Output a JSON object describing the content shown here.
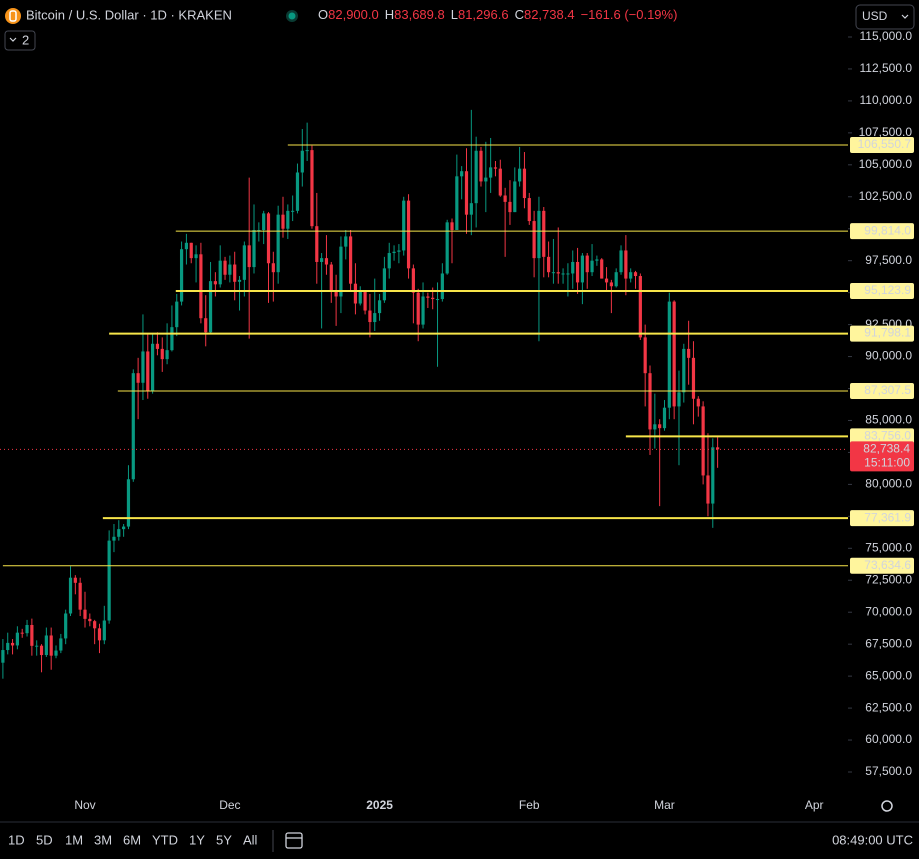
{
  "header": {
    "symbol": "Bitcoin / U.S. Dollar · 1D · KRAKEN",
    "ohlc": [
      {
        "key": "O",
        "value": "82,900.0"
      },
      {
        "key": "H",
        "value": "83,689.8"
      },
      {
        "key": "L",
        "value": "81,296.6"
      },
      {
        "key": "C",
        "value": "82,738.4"
      }
    ],
    "change": "−161.6 (−0.19%)",
    "indicators": "2",
    "currency": "USD"
  },
  "chart_data": {
    "type": "candlestick",
    "open": [
      66050,
      67040,
      67600,
      67400,
      68400,
      68360,
      69000,
      67370,
      67380,
      66650,
      68180,
      66600,
      67000,
      67950,
      69900,
      72700,
      72300,
      70200,
      69480,
      69300,
      68740,
      67800,
      69350,
      75600,
      75900,
      76500,
      76700,
      80400,
      88700,
      87950,
      90400,
      87300,
      91000,
      90600,
      89800,
      90500,
      92300,
      94300,
      98400,
      98900,
      97700,
      98000,
      93000,
      91900,
      95900,
      95650,
      97500,
      96400,
      97200,
      95850,
      96000,
      98700,
      97000,
      99900,
      99900,
      101200,
      97300,
      96600,
      101100,
      100000,
      101400,
      101400,
      104400,
      106100,
      106150,
      100200,
      97400,
      97700,
      97200,
      95100,
      94700,
      98600,
      99400,
      95700,
      94150,
      95200,
      93600,
      92700,
      93400,
      94400,
      96900,
      98100,
      98200,
      98300,
      102200,
      96900,
      95000,
      92500,
      94700,
      94600,
      94500,
      94500,
      96500,
      100500,
      99900,
      104100,
      104500,
      101100,
      102000,
      106100,
      103700,
      104000,
      104800,
      104700,
      102600,
      102100,
      101300,
      103700,
      104700,
      102400,
      100600,
      97700,
      101400,
      97800,
      96600,
      96600,
      96500,
      96500,
      96500,
      97400,
      95800,
      97900,
      96600,
      97500,
      97600,
      96100,
      95800,
      95500,
      96600,
      98300,
      96100,
      96600,
      96300,
      91500,
      88700,
      84300,
      84700,
      84400,
      86000,
      94300,
      86100,
      87200,
      90600,
      89900,
      86700,
      86100,
      80700,
      78500,
      82900
    ],
    "high": [
      67900,
      68400,
      67900,
      68900,
      68700,
      69400,
      69500,
      67800,
      67500,
      68800,
      68800,
      67400,
      68300,
      70200,
      73600,
      72900,
      72700,
      71600,
      69900,
      69400,
      69100,
      70500,
      76400,
      76900,
      77200,
      76900,
      81500,
      89000,
      89900,
      93300,
      91800,
      91800,
      91900,
      91500,
      92600,
      94000,
      94900,
      99000,
      99600,
      98900,
      98700,
      98900,
      94800,
      97400,
      96600,
      98700,
      97800,
      97900,
      98200,
      96300,
      99000,
      104000,
      101900,
      100500,
      101400,
      101300,
      98200,
      101800,
      102500,
      101900,
      102600,
      105100,
      107800,
      108300,
      106500,
      102800,
      98100,
      99500,
      97400,
      96400,
      99400,
      99900,
      99900,
      97300,
      95500,
      95200,
      94900,
      96100,
      94900,
      97800,
      98900,
      98700,
      98800,
      102500,
      102700,
      97200,
      95300,
      95800,
      95000,
      95400,
      95800,
      97300,
      100700,
      100800,
      105800,
      104900,
      106300,
      109300,
      107200,
      106400,
      106800,
      107100,
      105300,
      105400,
      103200,
      103800,
      104800,
      106400,
      106000,
      102800,
      101400,
      102500,
      101700,
      99000,
      99200,
      100100,
      96900,
      97300,
      98300,
      98500,
      98100,
      98100,
      98800,
      97900,
      97700,
      97000,
      96000,
      96900,
      98700,
      99500,
      96900,
      96700,
      96500,
      92500,
      89300,
      87100,
      85100,
      86600,
      95000,
      94400,
      88900,
      91000,
      92800,
      91200,
      86900,
      86500,
      84000,
      83600,
      83689.8
    ],
    "low": [
      64800,
      66700,
      66700,
      67100,
      68000,
      68100,
      66600,
      66600,
      65300,
      66500,
      65500,
      66400,
      66800,
      67500,
      69700,
      71400,
      69700,
      68800,
      68900,
      67500,
      66800,
      67500,
      69100,
      74700,
      75600,
      75900,
      76500,
      80200,
      85100,
      86600,
      86700,
      87100,
      90100,
      88800,
      89400,
      90400,
      91600,
      94000,
      97200,
      97300,
      95800,
      92600,
      90800,
      91800,
      94700,
      95400,
      96000,
      95800,
      94400,
      93600,
      94700,
      91400,
      96500,
      99000,
      98800,
      94200,
      94300,
      95700,
      99300,
      99200,
      100600,
      101200,
      103300,
      105300,
      100000,
      95700,
      92200,
      96400,
      94200,
      92400,
      93400,
      97600,
      95200,
      93300,
      94000,
      93300,
      91500,
      92000,
      92800,
      94200,
      96100,
      97500,
      97300,
      97900,
      96100,
      92600,
      91200,
      92200,
      93800,
      93700,
      89200,
      94300,
      96400,
      97300,
      99900,
      102300,
      99600,
      99500,
      100100,
      103300,
      101300,
      102800,
      104100,
      102500,
      97800,
      100300,
      101300,
      103300,
      101600,
      100300,
      96200,
      91200,
      96200,
      96200,
      95700,
      95700,
      95700,
      94700,
      95300,
      94900,
      94100,
      95300,
      96300,
      97100,
      96100,
      95200,
      93400,
      95400,
      96400,
      94800,
      95800,
      95300,
      91300,
      86100,
      82300,
      82800,
      78300,
      84200,
      85100,
      85100,
      81500,
      86400,
      87800,
      84700,
      85300,
      80000,
      77500,
      76600,
      81296.6
    ],
    "close": [
      67040,
      67600,
      67400,
      68400,
      68360,
      69000,
      67370,
      67380,
      66650,
      68180,
      66600,
      67000,
      67950,
      69900,
      72700,
      72300,
      70200,
      69480,
      69300,
      68740,
      67800,
      69350,
      75600,
      75900,
      76500,
      76700,
      80400,
      88700,
      87950,
      90400,
      87300,
      91000,
      90600,
      89800,
      90500,
      92300,
      94300,
      98400,
      98900,
      97700,
      98000,
      93000,
      91900,
      95900,
      95650,
      97500,
      96400,
      97200,
      95850,
      96000,
      98700,
      97000,
      99900,
      99900,
      101200,
      97300,
      96600,
      101100,
      100000,
      101400,
      101400,
      104400,
      106100,
      106150,
      100200,
      97400,
      97700,
      97200,
      95100,
      94700,
      98600,
      99400,
      95700,
      94150,
      95200,
      93600,
      92700,
      93400,
      94400,
      96900,
      98100,
      98200,
      98300,
      102200,
      96900,
      95000,
      92500,
      94700,
      94600,
      94500,
      94500,
      96500,
      100500,
      99900,
      104100,
      104500,
      101100,
      102000,
      106100,
      103700,
      104000,
      104800,
      104700,
      102600,
      102100,
      101300,
      103700,
      104700,
      102400,
      100600,
      97700,
      101400,
      97800,
      96600,
      96600,
      96500,
      96500,
      96500,
      97400,
      95800,
      97900,
      96600,
      97500,
      97600,
      96100,
      95800,
      95500,
      96600,
      98300,
      96100,
      96600,
      96300,
      91500,
      88700,
      84300,
      84700,
      84400,
      86000,
      94300,
      86100,
      87200,
      90600,
      89900,
      86700,
      86100,
      80700,
      78500,
      82900,
      82738.4
    ],
    "up_color": "#089981",
    "down_color": "#f23645",
    "xlim": [
      -0.6,
      175
    ],
    "xticks": [
      {
        "value": 17,
        "label": "Nov"
      },
      {
        "value": 47,
        "label": "Dec"
      },
      {
        "value": 78,
        "label": "2025"
      },
      {
        "value": 109,
        "label": "Feb"
      },
      {
        "value": 137,
        "label": "Mar"
      },
      {
        "value": 168,
        "label": "Apr"
      }
    ],
    "ylim": [
      55935,
      117894
    ],
    "yticks": [
      {
        "value": 57500,
        "label": "57,500.0"
      },
      {
        "value": 60000,
        "label": "60,000.0"
      },
      {
        "value": 62500,
        "label": "62,500.0"
      },
      {
        "value": 65000,
        "label": "65,000.0"
      },
      {
        "value": 67500,
        "label": "67,500.0"
      },
      {
        "value": 70000,
        "label": "70,000.0"
      },
      {
        "value": 72500,
        "label": "72,500.0"
      },
      {
        "value": 75000,
        "label": "75,000.0"
      },
      {
        "value": 77500,
        "label": "77,500.0"
      },
      {
        "value": 80000,
        "label": "80,000.0"
      },
      {
        "value": 82500,
        "label": "82,500.0"
      },
      {
        "value": 85000,
        "label": "85,000.0"
      },
      {
        "value": 87500,
        "label": "87,500.0"
      },
      {
        "value": 90000,
        "label": "90,000.0"
      },
      {
        "value": 92500,
        "label": "92,500.0"
      },
      {
        "value": 95000,
        "label": "95,000.0"
      },
      {
        "value": 97500,
        "label": "97,500.0"
      },
      {
        "value": 100000,
        "label": "100,000.0"
      },
      {
        "value": 102500,
        "label": "102,500.0"
      },
      {
        "value": 105000,
        "label": "105,000.0"
      },
      {
        "value": 107500,
        "label": "107,500.0"
      },
      {
        "value": 110000,
        "label": "110,000.0"
      },
      {
        "value": 112500,
        "label": "112,500.0"
      },
      {
        "value": 115000,
        "label": "115,000.0"
      }
    ],
    "grid": false,
    "level_color": "#f7e54a",
    "levels": [
      {
        "value": 106550.7,
        "label": "106,550.7",
        "start": 59,
        "width": 1
      },
      {
        "value": 99814.0,
        "label": "99,814.0",
        "start": 35.8,
        "width": 1
      },
      {
        "value": 95123.9,
        "label": "95,123.9",
        "start": 35.8,
        "width": 2
      },
      {
        "value": 91798.1,
        "label": "91,798.1",
        "start": 22,
        "width": 2
      },
      {
        "value": 87307.5,
        "label": "87,307.5",
        "start": 23.8,
        "width": 1
      },
      {
        "value": 83756.0,
        "label": "83,756.0",
        "start": 129,
        "width": 2
      },
      {
        "value": 77361.9,
        "label": "77,361.9",
        "start": 20.7,
        "width": 2
      },
      {
        "value": 73634.6,
        "label": "73,634.6",
        "start": 0,
        "width": 1
      }
    ],
    "last_price": {
      "value": 82738.4,
      "label": "82,738.4",
      "countdown": "15:11:00",
      "color": "#f23645"
    }
  },
  "toolbar": {
    "ranges": [
      "1D",
      "5D",
      "1M",
      "3M",
      "6M",
      "YTD",
      "1Y",
      "5Y",
      "All"
    ],
    "time": "08:49:00 UTC"
  }
}
